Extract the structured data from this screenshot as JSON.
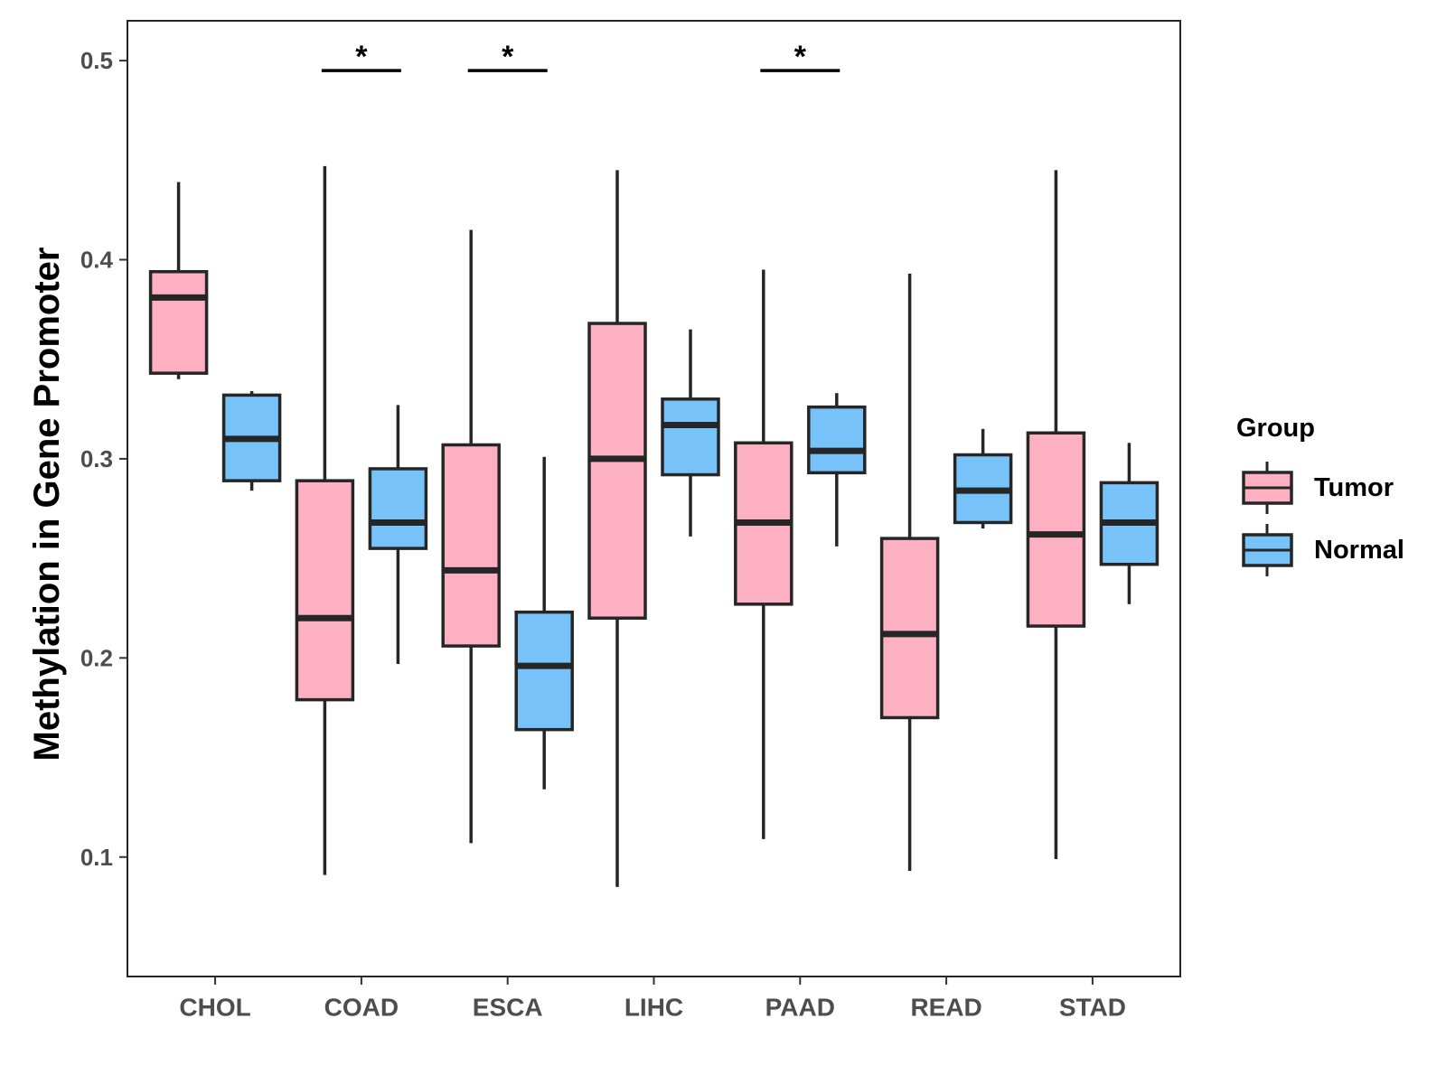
{
  "chart_data": {
    "type": "boxplot",
    "title": "",
    "xlabel": "",
    "ylabel": "Methylation in Gene Promoter",
    "ylim": [
      0.04,
      0.52
    ],
    "yticks": [
      0.1,
      0.2,
      0.3,
      0.4,
      0.5
    ],
    "ytick_labels": [
      "0.1",
      "0.2",
      "0.3",
      "0.4",
      "0.5"
    ],
    "categories": [
      "CHOL",
      "COAD",
      "ESCA",
      "LIHC",
      "PAAD",
      "READ",
      "STAD"
    ],
    "legend": {
      "title": "Group",
      "position": "right",
      "entries": [
        {
          "name": "Tumor",
          "color": "#fcb0c2"
        },
        {
          "name": "Normal",
          "color": "#77c2f9"
        }
      ]
    },
    "series": [
      {
        "name": "Tumor",
        "color": "#fcb0c2",
        "boxes": [
          {
            "category": "CHOL",
            "min": 0.34,
            "q1": 0.343,
            "median": 0.381,
            "q3": 0.394,
            "max": 0.439
          },
          {
            "category": "COAD",
            "min": 0.091,
            "q1": 0.179,
            "median": 0.22,
            "q3": 0.289,
            "max": 0.447
          },
          {
            "category": "ESCA",
            "min": 0.107,
            "q1": 0.206,
            "median": 0.244,
            "q3": 0.307,
            "max": 0.415
          },
          {
            "category": "LIHC",
            "min": 0.085,
            "q1": 0.22,
            "median": 0.3,
            "q3": 0.368,
            "max": 0.445
          },
          {
            "category": "PAAD",
            "min": 0.109,
            "q1": 0.227,
            "median": 0.268,
            "q3": 0.308,
            "max": 0.395
          },
          {
            "category": "READ",
            "min": 0.093,
            "q1": 0.17,
            "median": 0.212,
            "q3": 0.26,
            "max": 0.393
          },
          {
            "category": "STAD",
            "min": 0.099,
            "q1": 0.216,
            "median": 0.262,
            "q3": 0.313,
            "max": 0.445
          }
        ]
      },
      {
        "name": "Normal",
        "color": "#77c2f9",
        "boxes": [
          {
            "category": "CHOL",
            "min": 0.284,
            "q1": 0.289,
            "median": 0.31,
            "q3": 0.332,
            "max": 0.334
          },
          {
            "category": "COAD",
            "min": 0.197,
            "q1": 0.255,
            "median": 0.268,
            "q3": 0.295,
            "max": 0.327
          },
          {
            "category": "ESCA",
            "min": 0.134,
            "q1": 0.164,
            "median": 0.196,
            "q3": 0.223,
            "max": 0.301
          },
          {
            "category": "LIHC",
            "min": 0.261,
            "q1": 0.292,
            "median": 0.317,
            "q3": 0.33,
            "max": 0.365
          },
          {
            "category": "PAAD",
            "min": 0.256,
            "q1": 0.293,
            "median": 0.304,
            "q3": 0.326,
            "max": 0.333
          },
          {
            "category": "READ",
            "min": 0.265,
            "q1": 0.268,
            "median": 0.284,
            "q3": 0.302,
            "max": 0.315
          },
          {
            "category": "STAD",
            "min": 0.227,
            "q1": 0.247,
            "median": 0.268,
            "q3": 0.288,
            "max": 0.308
          }
        ]
      }
    ],
    "annotations": [
      {
        "category": "COAD",
        "text": "*",
        "y": 0.495
      },
      {
        "category": "ESCA",
        "text": "*",
        "y": 0.495
      },
      {
        "category": "PAAD",
        "text": "*",
        "y": 0.495
      }
    ]
  }
}
